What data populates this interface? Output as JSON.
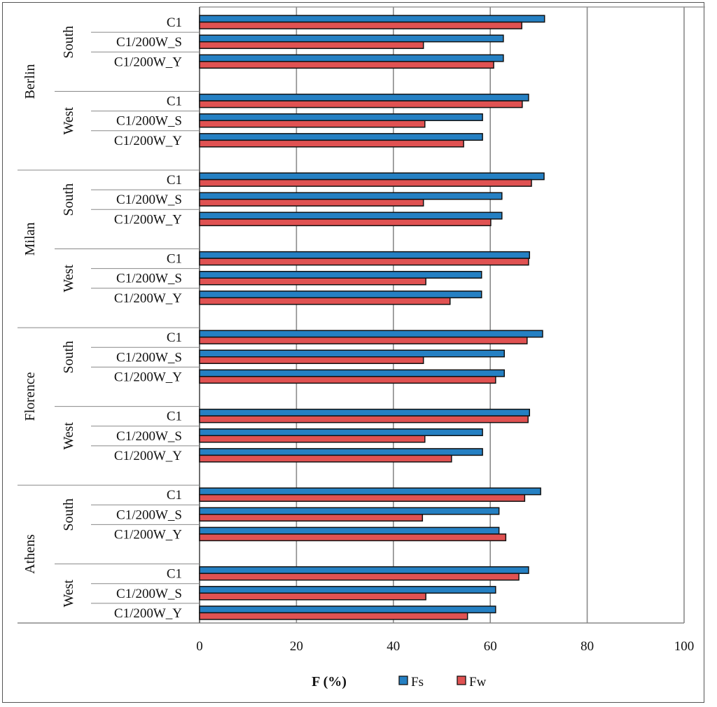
{
  "chart_data": {
    "type": "bar",
    "orientation": "horizontal",
    "xlabel": "F (%)",
    "xlim": [
      0,
      100
    ],
    "xticks": [
      0,
      20,
      40,
      60,
      80,
      100
    ],
    "grid": true,
    "legend_position": "bottom",
    "colors": {
      "Fs": "#2580c3",
      "Fw": "#e05252"
    },
    "groups": [
      {
        "city": "Berlin",
        "regions": [
          {
            "region": "South",
            "categories": [
              "C1",
              "C1/200W_S",
              "C1/200W_Y"
            ],
            "Fs": [
              71.2,
              62.7,
              62.7
            ],
            "Fw": [
              66.5,
              46.2,
              60.7
            ]
          },
          {
            "region": "West",
            "categories": [
              "C1",
              "C1/200W_S",
              "C1/200W_Y"
            ],
            "Fs": [
              67.9,
              58.4,
              58.4
            ],
            "Fw": [
              66.6,
              46.5,
              54.5
            ]
          }
        ]
      },
      {
        "city": "Milan",
        "regions": [
          {
            "region": "South",
            "categories": [
              "C1",
              "C1/200W_S",
              "C1/200W_Y"
            ],
            "Fs": [
              71.1,
              62.4,
              62.4
            ],
            "Fw": [
              68.5,
              46.2,
              60.1
            ]
          },
          {
            "region": "West",
            "categories": [
              "C1",
              "C1/200W_S",
              "C1/200W_Y"
            ],
            "Fs": [
              68.1,
              58.2,
              58.2
            ],
            "Fw": [
              67.9,
              46.7,
              51.7
            ]
          }
        ]
      },
      {
        "city": "Florence",
        "regions": [
          {
            "region": "South",
            "categories": [
              "C1",
              "C1/200W_S",
              "C1/200W_Y"
            ],
            "Fs": [
              70.8,
              62.9,
              62.9
            ],
            "Fw": [
              67.6,
              46.2,
              61.1
            ]
          },
          {
            "region": "West",
            "categories": [
              "C1",
              "C1/200W_S",
              "C1/200W_Y"
            ],
            "Fs": [
              68.1,
              58.4,
              58.4
            ],
            "Fw": [
              67.8,
              46.5,
              52.0
            ]
          }
        ]
      },
      {
        "city": "Athens",
        "regions": [
          {
            "region": "South",
            "categories": [
              "C1",
              "C1/200W_S",
              "C1/200W_Y"
            ],
            "Fs": [
              70.4,
              61.8,
              61.8
            ],
            "Fw": [
              67.1,
              46.0,
              63.2
            ]
          },
          {
            "region": "West",
            "categories": [
              "C1",
              "C1/200W_S",
              "C1/200W_Y"
            ],
            "Fs": [
              67.9,
              61.1,
              61.1
            ],
            "Fw": [
              65.9,
              46.7,
              55.3
            ]
          }
        ]
      }
    ],
    "series": [
      {
        "name": "Fs"
      },
      {
        "name": "Fw"
      }
    ]
  }
}
